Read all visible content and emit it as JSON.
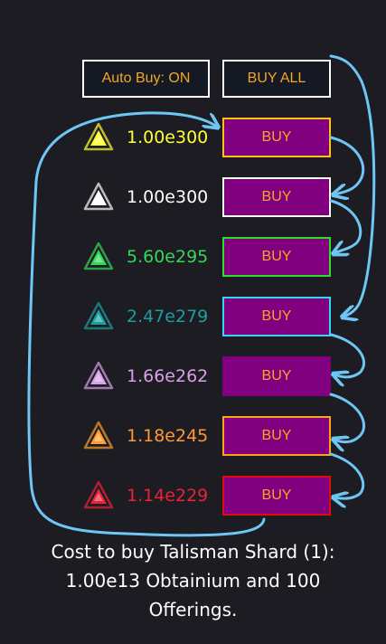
{
  "top_buttons": {
    "auto_buy_label": "Auto Buy: ON",
    "buy_all_label": "BUY ALL"
  },
  "colors": {
    "button_text": "#f5a623",
    "buy_bg": "#800080",
    "annotation": "#6ec6f5"
  },
  "rows": [
    {
      "icon": "gold-triangle-icon",
      "amount": "1.00e300",
      "color": "#ffff33",
      "border": "#ffc30b",
      "buy_label": "BUY"
    },
    {
      "icon": "white-triangle-icon",
      "amount": "1.00e300",
      "color": "#ffffff",
      "border": "#ffffff",
      "buy_label": "BUY"
    },
    {
      "icon": "green-triangle-icon",
      "amount": "5.60e295",
      "color": "#33d85a",
      "border": "#2ee02e",
      "buy_label": "BUY"
    },
    {
      "icon": "blue-triangle-icon",
      "amount": "2.47e279",
      "color": "#1aa0a0",
      "border": "#33d6f5",
      "buy_label": "BUY"
    },
    {
      "icon": "purple-triangle-icon",
      "amount": "1.66e262",
      "color": "#d8a0e8",
      "border": "#800080",
      "buy_label": "BUY"
    },
    {
      "icon": "orange-triangle-icon",
      "amount": "1.18e245",
      "color": "#ff9a2e",
      "border": "#ffa31a",
      "buy_label": "BUY"
    },
    {
      "icon": "red-triangle-icon",
      "amount": "1.14e229",
      "color": "#e8233a",
      "border": "#e00b0b",
      "buy_label": "BUY"
    }
  ],
  "cost": {
    "line1": "Cost to buy Talisman Shard (1):",
    "line2": "1.00e13 Obtainium and 100",
    "line3": "Offerings."
  }
}
